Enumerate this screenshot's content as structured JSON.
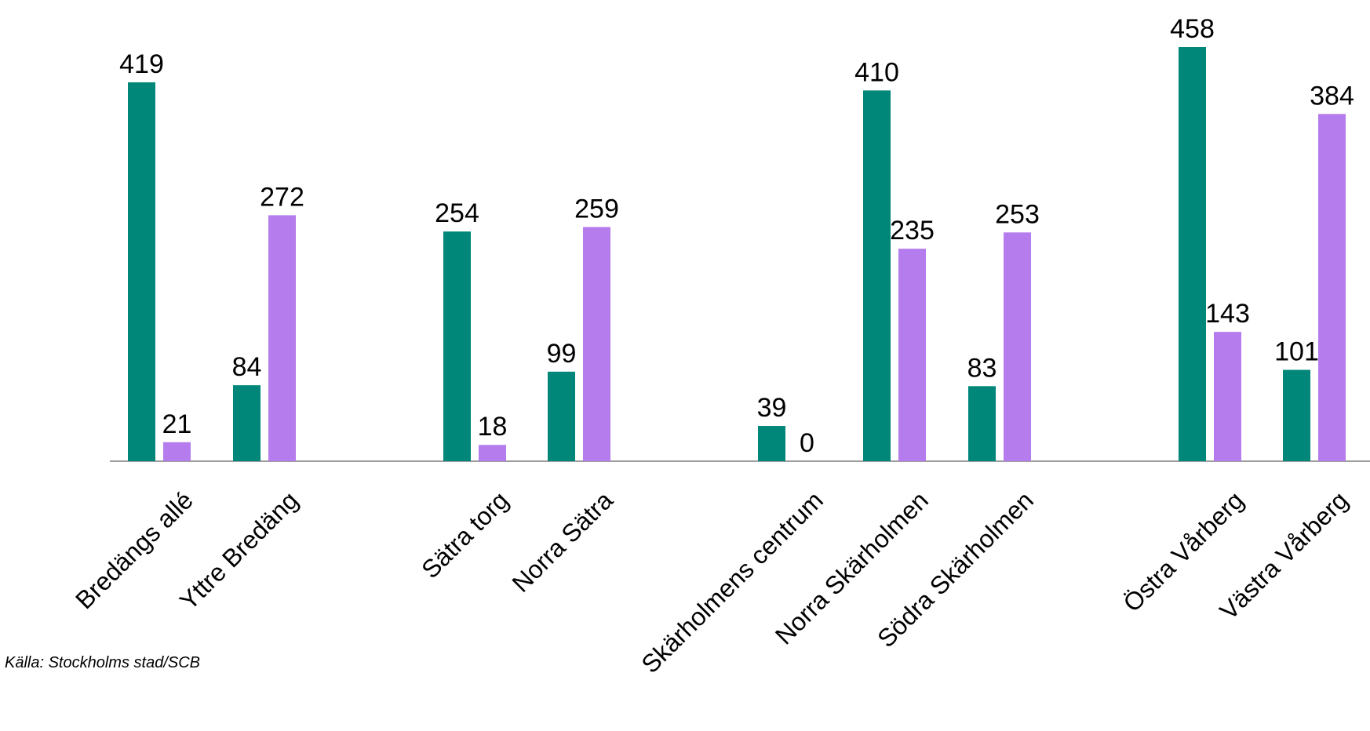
{
  "source_note": "Källa: Stockholms stad/SCB",
  "colors": {
    "series_1": "#00877a",
    "series_2": "#b57ced",
    "axis": "#7f7f7f",
    "text": "#000000"
  },
  "chart_data": {
    "type": "bar",
    "title": "",
    "xlabel": "",
    "ylabel": "",
    "ylim": [
      0,
      458
    ],
    "grid": false,
    "legend": "none",
    "categories": [
      "Bredängs allé",
      "Yttre Bredäng",
      "Sätra torg",
      "Norra Sätra",
      "Skärholmens centrum",
      "Norra Skärholmen",
      "Södra Skärholmen",
      "Östra Vårberg",
      "Västra Vårberg"
    ],
    "series": [
      {
        "values": [
          419,
          84,
          254,
          99,
          39,
          410,
          83,
          458,
          101
        ]
      },
      {
        "values": [
          21,
          272,
          18,
          259,
          0,
          235,
          253,
          143,
          384
        ]
      }
    ]
  }
}
